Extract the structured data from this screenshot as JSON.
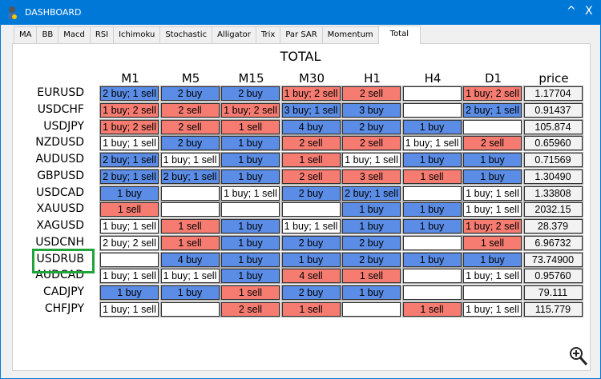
{
  "window": {
    "title": "DASHBOARD",
    "minimize": "^",
    "close": "X"
  },
  "tabs": [
    "MA",
    "BB",
    "Macd",
    "RSI",
    "Ichimoku",
    "Stochastic",
    "Alligator",
    "Trix",
    "Par SAR",
    "Momentum",
    "Total"
  ],
  "active_tab": "Total",
  "heading": "TOTAL",
  "columns": [
    "M1",
    "M5",
    "M15",
    "M30",
    "H1",
    "H4",
    "D1",
    "price"
  ],
  "colors": {
    "buy": "#5b8de6",
    "sell": "#f67c72",
    "neutral": "#ffffff",
    "highlight": "#1fa33a",
    "titlebar": "#0078d7"
  },
  "highlighted_symbol": "USDRUB",
  "rows": [
    {
      "symbol": "EURUSD",
      "cells": [
        "2 buy; 1 sell",
        "2 buy",
        "2 buy",
        "1 buy; 2 sell",
        "2 sell",
        "",
        "1 buy; 2 sell"
      ],
      "price": "1.17704"
    },
    {
      "symbol": "USDCHF",
      "cells": [
        "1 buy; 2 sell",
        "2 sell",
        "1 buy; 2 sell",
        "3 buy; 1 sell",
        "3 buy",
        "",
        "2 buy; 1 sell"
      ],
      "price": "0.91437"
    },
    {
      "symbol": "USDJPY",
      "cells": [
        "1 buy; 2 sell",
        "2 sell",
        "1 sell",
        "4 buy",
        "2 buy",
        "1 buy",
        ""
      ],
      "price": "105.874"
    },
    {
      "symbol": "NZDUSD",
      "cells": [
        "1 buy; 1 sell",
        "2 buy",
        "1 buy",
        "2 sell",
        "2 sell",
        "1 buy; 1 sell",
        "2 sell"
      ],
      "price": "0.65960"
    },
    {
      "symbol": "AUDUSD",
      "cells": [
        "2 buy; 1 sell",
        "1 buy; 1 sell",
        "1 buy",
        "1 sell",
        "1 buy; 1 sell",
        "1 buy",
        "1 buy"
      ],
      "price": "0.71569"
    },
    {
      "symbol": "GBPUSD",
      "cells": [
        "2 buy; 1 sell",
        "2 buy; 1 sell",
        "1 buy",
        "2 sell",
        "3 sell",
        "1 sell",
        "1 buy"
      ],
      "price": "1.30490"
    },
    {
      "symbol": "USDCAD",
      "cells": [
        "1 buy",
        "",
        "1 buy; 1 sell",
        "2 buy",
        "2 buy; 1 sell",
        "",
        "1 buy; 1 sell"
      ],
      "price": "1.33808"
    },
    {
      "symbol": "XAUUSD",
      "cells": [
        "1 sell",
        "",
        "",
        "",
        "1 buy",
        "1 buy",
        "1 buy; 1 sell"
      ],
      "price": "2032.15"
    },
    {
      "symbol": "XAGUSD",
      "cells": [
        "1 buy; 1 sell",
        "1 sell",
        "1 buy",
        "1 buy; 1 sell",
        "1 buy",
        "1 buy",
        "1 buy; 2 sell"
      ],
      "price": "28.379"
    },
    {
      "symbol": "USDCNH",
      "cells": [
        "2 buy; 2 sell",
        "1 sell",
        "1 buy",
        "2 buy",
        "2 buy",
        "",
        "1 sell"
      ],
      "price": "6.96732"
    },
    {
      "symbol": "USDRUB",
      "cells": [
        "",
        "4 buy",
        "1 buy",
        "1 buy",
        "2 buy",
        "1 buy",
        "1 buy"
      ],
      "price": "73.74900"
    },
    {
      "symbol": "AUDCAD",
      "cells": [
        "1 buy; 1 sell",
        "1 buy; 1 sell",
        "1 buy",
        "4 sell",
        "1 sell",
        "",
        "1 buy; 1 sell"
      ],
      "price": "0.95760"
    },
    {
      "symbol": "CADJPY",
      "cells": [
        "1 buy",
        "1 buy",
        "1 sell",
        "2 buy",
        "1 buy",
        "",
        ""
      ],
      "price": "79.111"
    },
    {
      "symbol": "CHFJPY",
      "cells": [
        "1 buy; 1 sell",
        "",
        "2 sell",
        "1 sell",
        "",
        "1 sell",
        "1 buy; 1 sell"
      ],
      "price": "115.779"
    }
  ]
}
